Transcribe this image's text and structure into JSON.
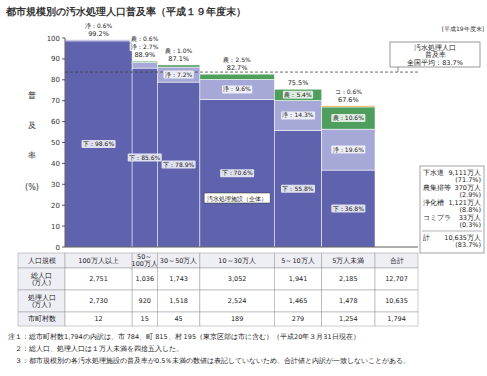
{
  "chart_data": {
    "type": "bar",
    "stacked": true,
    "grid": false,
    "data_labels": true,
    "title": "都市規模別の汚水処理人口普及率（平成１９年度末）",
    "corner_note": "[平成19年度末]",
    "y_label_lines": [
      "普",
      "及",
      "率",
      "(%)"
    ],
    "categories": [
      "100万人以上",
      "50～\n100万人",
      "30～50万人",
      "10～30万人",
      "5～10万人",
      "5万人未満"
    ],
    "ylim": [
      0,
      100
    ],
    "yticks": [
      0,
      10,
      20,
      30,
      40,
      50,
      60,
      70,
      80,
      90,
      100
    ],
    "series": [
      {
        "name": "下水道",
        "color": "#5f63ad",
        "values": [
          98.6,
          85.6,
          78.9,
          70.6,
          55.8,
          36.8
        ],
        "value_labels": [
          "下：98.6%",
          "下：85.6%",
          "下：78.9%",
          "下：70.6%",
          "下：55.8%",
          "下：36.8%"
        ],
        "population_label": "9,111万人",
        "share_label": "(71.7%)"
      },
      {
        "name": "農集排等",
        "color": "#4f9e5e",
        "values": [
          null,
          0.6,
          1.0,
          2.5,
          5.4,
          10.6
        ],
        "value_labels": [
          null,
          "農：0.6%",
          "農：1.0%",
          "農：2.5%",
          "農：5.4%",
          "農：10.6%"
        ],
        "population_label": "370万人",
        "share_label": "(2.9%)"
      },
      {
        "name": "浄化槽",
        "color": "#a6a9d8",
        "values": [
          0.6,
          2.7,
          7.2,
          9.6,
          14.3,
          19.6
        ],
        "value_labels": [
          "浄：0.6%",
          "浄：2.7%",
          "浄：7.2%",
          "浄：9.6%",
          "浄：14.3%",
          "浄：19.6%"
        ],
        "population_label": "1,121万人",
        "share_label": "(8.8%)"
      },
      {
        "name": "コミプラ",
        "color": "#e8a93a",
        "values": [
          null,
          null,
          null,
          null,
          null,
          0.6
        ],
        "value_labels": [
          null,
          null,
          null,
          null,
          null,
          "コ：0.6%"
        ],
        "population_label": "33万人",
        "share_label": "(0.3%)"
      }
    ],
    "totals": [
      99.2,
      88.9,
      87.1,
      82.7,
      75.5,
      67.6
    ],
    "total_labels": [
      "99.2%",
      "88.9%",
      "87.1%",
      "82.7%",
      "75.5%",
      "67.6%"
    ],
    "reference_line": {
      "value": 83.7,
      "label": "汚水処理人口\n普及率\n全国平均：83.7%"
    },
    "annotation": "汚水処理施設（全体）",
    "summary_total": {
      "name": "計",
      "population_label": "10,635万人",
      "share_label": "(83.7%)"
    }
  },
  "table": {
    "header_label": "人口規模",
    "total_header": "合計",
    "rows": [
      {
        "label": "総人口\n(万人)",
        "values": [
          2751,
          1036,
          1743,
          3052,
          1941,
          2185
        ],
        "value_labels": [
          "2,751",
          "1,036",
          "1,743",
          "3,052",
          "1,941",
          "2,185"
        ],
        "total": 12707,
        "total_label": "12,707"
      },
      {
        "label": "処理人口\n(万人)",
        "values": [
          2730,
          920,
          1518,
          2524,
          1465,
          1478
        ],
        "value_labels": [
          "2,730",
          "920",
          "1,518",
          "2,524",
          "1,465",
          "1,478"
        ],
        "total": 10635,
        "total_label": "10,635"
      },
      {
        "label": "市町村数",
        "values": [
          12,
          15,
          45,
          189,
          279,
          1254
        ],
        "value_labels": [
          "12",
          "15",
          "45",
          "189",
          "279",
          "1,254"
        ],
        "total": 1794,
        "total_label": "1,794"
      }
    ]
  },
  "notes": [
    "注１：総市町村数1,794の内訳は、市 784、町 815、村 195（東京区部は市に含む）（平成20年３月31日現在）",
    "２：総人口、処理人口は１万人未満を四捨五入した。",
    "３：都市規模別の各汚水処理施設の普及率が0.5％未満の数値は表記していないため、合計値と内訳が一致しないことがある。"
  ]
}
